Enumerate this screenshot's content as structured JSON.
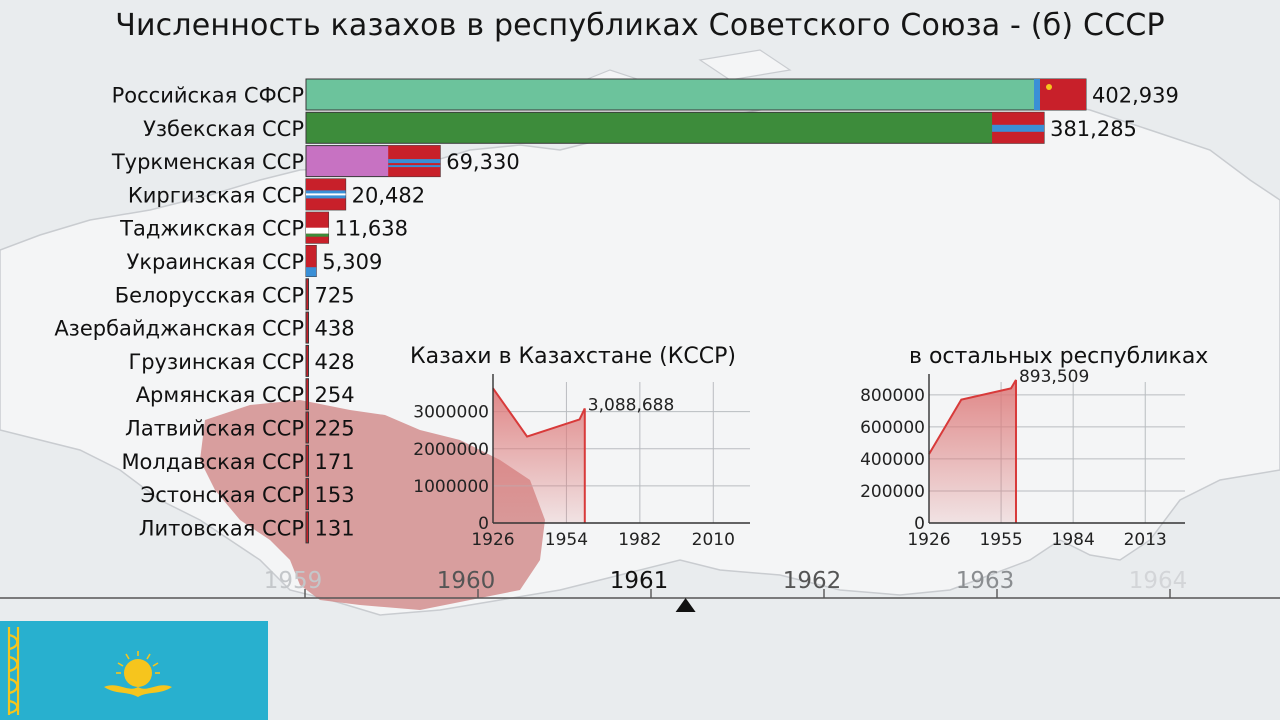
{
  "title": "Численность казахов в республиках Советского Союза - (б) СССР",
  "colors": {
    "background": "#e9ecee",
    "map_land": "#f3f4f5",
    "kazakh_ssr_map": "#c98a8a",
    "flag_red": "#c8202a",
    "flag_blue": "#3a8fd6",
    "bar_rsfsr": "#6cc39c",
    "bar_uzssr": "#3d8c3b",
    "bar_tkssr": "#c772c2",
    "area_fill": "#dd7a7a",
    "area_line": "#d83a3a",
    "kz_flag_bg": "#28b0cf",
    "kz_flag_gold": "#f6c51d"
  },
  "chart_data": [
    {
      "type": "bar",
      "orientation": "horizontal",
      "title": "Численность казахов в республиках Советского Союза - (б) СССР",
      "categories": [
        "Российская СФСР",
        "Узбекская ССР",
        "Туркменская ССР",
        "Киргизская ССР",
        "Таджикская ССР",
        "Украинская ССР",
        "Белорусская ССР",
        "Азербайджанская ССР",
        "Грузинская ССР",
        "Армянская ССР",
        "Латвийская ССР",
        "Молдавская ССР",
        "Эстонская ССР",
        "Литовская ССР"
      ],
      "values": [
        402939,
        381285,
        69330,
        20482,
        11638,
        5309,
        725,
        438,
        428,
        254,
        225,
        171,
        153,
        131
      ],
      "value_labels": [
        "402,939",
        "381,285",
        "69,330",
        "20,482",
        "11,638",
        "5,309",
        "725",
        "438",
        "428",
        "254",
        "225",
        "171",
        "153",
        "131"
      ],
      "bar_colors": [
        "#6cc39c",
        "#3d8c3b",
        "#c772c2",
        "#c8202a",
        "#c8202a",
        "#c8202a",
        "#c8202a",
        "#c8202a",
        "#c8202a",
        "#c8202a",
        "#c8202a",
        "#c8202a",
        "#c8202a",
        "#c8202a"
      ],
      "flag_icons": [
        "rsfsr-flag-icon",
        "uzssr-flag-icon",
        "tkssr-flag-icon",
        "kgssr-flag-icon",
        "tjssr-flag-icon",
        "ukssr-flag-icon"
      ],
      "xlim": [
        0,
        402939
      ]
    },
    {
      "type": "area",
      "title": "Казахи в Казахстане (КССР)",
      "x": [
        1926,
        1939,
        1959,
        1961
      ],
      "values": [
        3630000,
        2330000,
        2790000,
        3088688
      ],
      "end_label": "3,088,688",
      "xlim": [
        1926,
        2024
      ],
      "ylim": [
        0,
        3800000
      ],
      "x_ticks": [
        "1926",
        "1954",
        "1982",
        "2010"
      ],
      "x_tick_values": [
        1926,
        1954,
        1982,
        2010
      ],
      "y_ticks": [
        "0",
        "1000000",
        "2000000",
        "3000000"
      ],
      "y_tick_values": [
        0,
        1000000,
        2000000,
        3000000
      ],
      "grid": true
    },
    {
      "type": "area",
      "title": "в остальных республиках",
      "x": [
        1926,
        1939,
        1959,
        1961
      ],
      "values": [
        430000,
        770000,
        840000,
        893509
      ],
      "end_label": "893,509",
      "xlim": [
        1926,
        2029
      ],
      "ylim": [
        0,
        880000
      ],
      "x_ticks": [
        "1926",
        "1955",
        "1984",
        "2013"
      ],
      "x_tick_values": [
        1926,
        1955,
        1984,
        2013
      ],
      "y_ticks": [
        "0",
        "200000",
        "400000",
        "600000",
        "800000"
      ],
      "y_tick_values": [
        0,
        200000,
        400000,
        600000,
        800000
      ],
      "grid": true
    }
  ],
  "timeline": {
    "years": [
      "1959",
      "1960",
      "1961",
      "1962",
      "1963",
      "1964"
    ],
    "year_values": [
      1959,
      1960,
      1961,
      1962,
      1963,
      1964
    ],
    "current": 1961.2,
    "label_colors": [
      "#c4c7ca",
      "#555555",
      "#111111",
      "#555555",
      "#8a8d90",
      "#d3d5d8"
    ]
  },
  "flag_panel": {
    "name": "kazakhstan-flag",
    "ornament_icon": "ornament-icon",
    "emblem_icon": "sun-eagle-icon"
  }
}
